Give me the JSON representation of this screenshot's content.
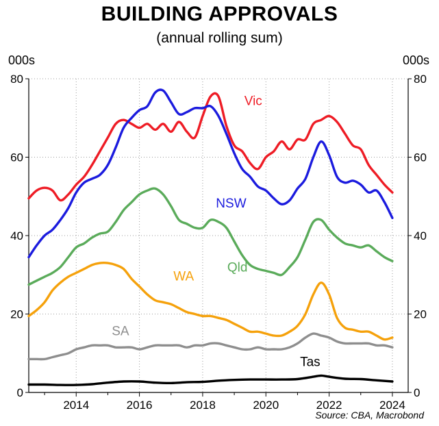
{
  "title": "BUILDING APPROVALS",
  "subtitle": "(annual rolling sum)",
  "unit_left": "000s",
  "unit_right": "000s",
  "source": "Source: CBA, Macrobond",
  "chart_data": {
    "type": "line",
    "title": "BUILDING APPROVALS",
    "subtitle": "(annual rolling sum)",
    "ylabel": "000s",
    "ylim": [
      0,
      80
    ],
    "xlim": [
      2012.5,
      2024.5
    ],
    "yticks": [
      "0",
      "20",
      "40",
      "60",
      "80"
    ],
    "xticks": [
      "2014",
      "2016",
      "2018",
      "2020",
      "2022",
      "2024"
    ],
    "grid": true,
    "series": [
      {
        "name": "Vic",
        "color": "#ee1c25",
        "x": [
          2012.5,
          2012.75,
          2013.0,
          2013.25,
          2013.5,
          2013.75,
          2014.0,
          2014.25,
          2014.5,
          2014.75,
          2015.0,
          2015.25,
          2015.5,
          2015.75,
          2016.0,
          2016.25,
          2016.5,
          2016.75,
          2017.0,
          2017.25,
          2017.5,
          2017.75,
          2018.0,
          2018.25,
          2018.5,
          2018.75,
          2019.0,
          2019.25,
          2019.5,
          2019.75,
          2020.0,
          2020.25,
          2020.5,
          2020.75,
          2021.0,
          2021.25,
          2021.5,
          2021.75,
          2022.0,
          2022.25,
          2022.5,
          2022.75,
          2023.0,
          2023.25,
          2023.5,
          2023.75,
          2024.0
        ],
        "y": [
          49.5,
          51.5,
          52.2,
          51.5,
          49.0,
          50.5,
          53.0,
          55.0,
          58.0,
          61.5,
          65.0,
          68.5,
          69.5,
          68.5,
          67.5,
          68.5,
          67.0,
          68.5,
          66.5,
          69.0,
          66.5,
          65.0,
          70.5,
          75.5,
          75.5,
          68.0,
          63.0,
          61.5,
          58.5,
          57.0,
          60.0,
          61.5,
          64.0,
          62.0,
          64.5,
          64.5,
          68.5,
          69.5,
          70.5,
          69.0,
          66.0,
          63.0,
          62.0,
          58.0,
          55.5,
          53.0,
          51.0
        ]
      },
      {
        "name": "NSW",
        "color": "#1b1bde",
        "x": [
          2012.5,
          2012.75,
          2013.0,
          2013.25,
          2013.5,
          2013.75,
          2014.0,
          2014.25,
          2014.5,
          2014.75,
          2015.0,
          2015.25,
          2015.5,
          2015.75,
          2016.0,
          2016.25,
          2016.5,
          2016.75,
          2017.0,
          2017.25,
          2017.5,
          2017.75,
          2018.0,
          2018.25,
          2018.5,
          2018.75,
          2019.0,
          2019.25,
          2019.5,
          2019.75,
          2020.0,
          2020.25,
          2020.5,
          2020.75,
          2021.0,
          2021.25,
          2021.5,
          2021.75,
          2022.0,
          2022.25,
          2022.5,
          2022.75,
          2023.0,
          2023.25,
          2023.5,
          2023.75,
          2024.0
        ],
        "y": [
          34.5,
          37.5,
          40.0,
          41.5,
          44.0,
          47.0,
          51.0,
          53.5,
          54.5,
          55.5,
          58.0,
          62.5,
          67.5,
          70.0,
          72.0,
          73.0,
          76.5,
          77.0,
          74.0,
          71.0,
          71.5,
          72.5,
          72.5,
          73.0,
          70.5,
          66.0,
          61.0,
          57.0,
          55.0,
          52.5,
          51.5,
          49.5,
          48.0,
          49.0,
          52.0,
          54.5,
          60.0,
          64.0,
          60.5,
          55.0,
          53.5,
          54.0,
          53.0,
          51.0,
          51.5,
          48.5,
          44.5
        ]
      },
      {
        "name": "Qld",
        "color": "#5aab5a",
        "x": [
          2012.5,
          2012.75,
          2013.0,
          2013.25,
          2013.5,
          2013.75,
          2014.0,
          2014.25,
          2014.5,
          2014.75,
          2015.0,
          2015.25,
          2015.5,
          2015.75,
          2016.0,
          2016.25,
          2016.5,
          2016.75,
          2017.0,
          2017.25,
          2017.5,
          2017.75,
          2018.0,
          2018.25,
          2018.5,
          2018.75,
          2019.0,
          2019.25,
          2019.5,
          2019.75,
          2020.0,
          2020.25,
          2020.5,
          2020.75,
          2021.0,
          2021.25,
          2021.5,
          2021.75,
          2022.0,
          2022.25,
          2022.5,
          2022.75,
          2023.0,
          2023.25,
          2023.5,
          2023.75,
          2024.0
        ],
        "y": [
          27.5,
          28.5,
          29.5,
          30.5,
          32.0,
          34.5,
          37.0,
          38.0,
          39.5,
          40.5,
          41.0,
          43.5,
          46.5,
          48.5,
          50.5,
          51.5,
          52.0,
          50.5,
          47.5,
          44.0,
          43.0,
          42.0,
          42.0,
          44.0,
          43.5,
          42.0,
          38.5,
          35.0,
          32.5,
          31.5,
          31.0,
          30.5,
          30.0,
          32.0,
          34.5,
          39.0,
          43.5,
          44.0,
          41.5,
          39.5,
          38.0,
          37.5,
          37.0,
          37.5,
          36.0,
          34.5,
          33.5
        ]
      },
      {
        "name": "WA",
        "color": "#f5a10b",
        "x": [
          2012.5,
          2012.75,
          2013.0,
          2013.25,
          2013.5,
          2013.75,
          2014.0,
          2014.25,
          2014.5,
          2014.75,
          2015.0,
          2015.25,
          2015.5,
          2015.75,
          2016.0,
          2016.25,
          2016.5,
          2016.75,
          2017.0,
          2017.25,
          2017.5,
          2017.75,
          2018.0,
          2018.25,
          2018.5,
          2018.75,
          2019.0,
          2019.25,
          2019.5,
          2019.75,
          2020.0,
          2020.25,
          2020.5,
          2020.75,
          2021.0,
          2021.25,
          2021.5,
          2021.75,
          2022.0,
          2022.25,
          2022.5,
          2022.75,
          2023.0,
          2023.25,
          2023.5,
          2023.75,
          2024.0
        ],
        "y": [
          19.5,
          21.0,
          23.0,
          26.0,
          28.0,
          29.5,
          30.5,
          31.5,
          32.5,
          33.0,
          33.0,
          32.5,
          31.5,
          29.0,
          27.0,
          25.0,
          23.5,
          23.0,
          22.5,
          21.5,
          20.5,
          20.0,
          19.5,
          19.5,
          19.0,
          18.5,
          17.5,
          16.5,
          15.5,
          15.5,
          15.0,
          14.5,
          14.5,
          15.5,
          17.0,
          20.0,
          25.0,
          28.0,
          25.0,
          19.0,
          16.5,
          16.0,
          15.5,
          15.5,
          14.5,
          13.5,
          14.0
        ]
      },
      {
        "name": "SA",
        "color": "#8e8e8e",
        "x": [
          2012.5,
          2012.75,
          2013.0,
          2013.25,
          2013.5,
          2013.75,
          2014.0,
          2014.25,
          2014.5,
          2014.75,
          2015.0,
          2015.25,
          2015.5,
          2015.75,
          2016.0,
          2016.25,
          2016.5,
          2016.75,
          2017.0,
          2017.25,
          2017.5,
          2017.75,
          2018.0,
          2018.25,
          2018.5,
          2018.75,
          2019.0,
          2019.25,
          2019.5,
          2019.75,
          2020.0,
          2020.25,
          2020.5,
          2020.75,
          2021.0,
          2021.25,
          2021.5,
          2021.75,
          2022.0,
          2022.25,
          2022.5,
          2022.75,
          2023.0,
          2023.25,
          2023.5,
          2023.75,
          2024.0
        ],
        "y": [
          8.5,
          8.5,
          8.5,
          9.0,
          9.5,
          10.0,
          11.0,
          11.5,
          12.0,
          12.0,
          12.0,
          11.5,
          11.5,
          11.5,
          11.0,
          11.5,
          12.0,
          12.0,
          12.0,
          12.0,
          11.5,
          12.0,
          12.0,
          12.5,
          12.5,
          12.0,
          11.5,
          11.0,
          11.0,
          11.5,
          11.0,
          11.0,
          11.0,
          11.5,
          12.5,
          14.0,
          15.0,
          14.5,
          14.0,
          13.0,
          12.5,
          12.5,
          12.5,
          12.5,
          12.0,
          12.0,
          11.5
        ]
      },
      {
        "name": "Tas",
        "color": "#000000",
        "x": [
          2012.5,
          2013.0,
          2013.5,
          2014.0,
          2014.5,
          2015.0,
          2015.5,
          2016.0,
          2016.5,
          2017.0,
          2017.5,
          2018.0,
          2018.5,
          2019.0,
          2019.5,
          2020.0,
          2020.5,
          2021.0,
          2021.5,
          2021.75,
          2022.0,
          2022.5,
          2023.0,
          2023.5,
          2024.0
        ],
        "y": [
          2.0,
          2.0,
          1.9,
          1.9,
          2.1,
          2.5,
          2.8,
          2.8,
          2.5,
          2.4,
          2.6,
          2.7,
          3.0,
          3.2,
          3.3,
          3.3,
          3.3,
          3.4,
          4.0,
          4.3,
          4.0,
          3.5,
          3.4,
          3.1,
          2.8
        ]
      }
    ],
    "labels": [
      {
        "text": "Vic",
        "color": "#ee1c25",
        "x": 2019.6,
        "y": 73.3
      },
      {
        "text": "NSW",
        "color": "#1b1bde",
        "x": 2018.9,
        "y": 47.2
      },
      {
        "text": "Qld",
        "color": "#5aab5a",
        "x": 2019.1,
        "y": 30.8
      },
      {
        "text": "WA",
        "color": "#f5a10b",
        "x": 2017.4,
        "y": 28.6
      },
      {
        "text": "SA",
        "color": "#8e8e8e",
        "x": 2015.4,
        "y": 14.6
      },
      {
        "text": "Tas",
        "color": "#000000",
        "x": 2021.4,
        "y": 6.7
      }
    ]
  }
}
